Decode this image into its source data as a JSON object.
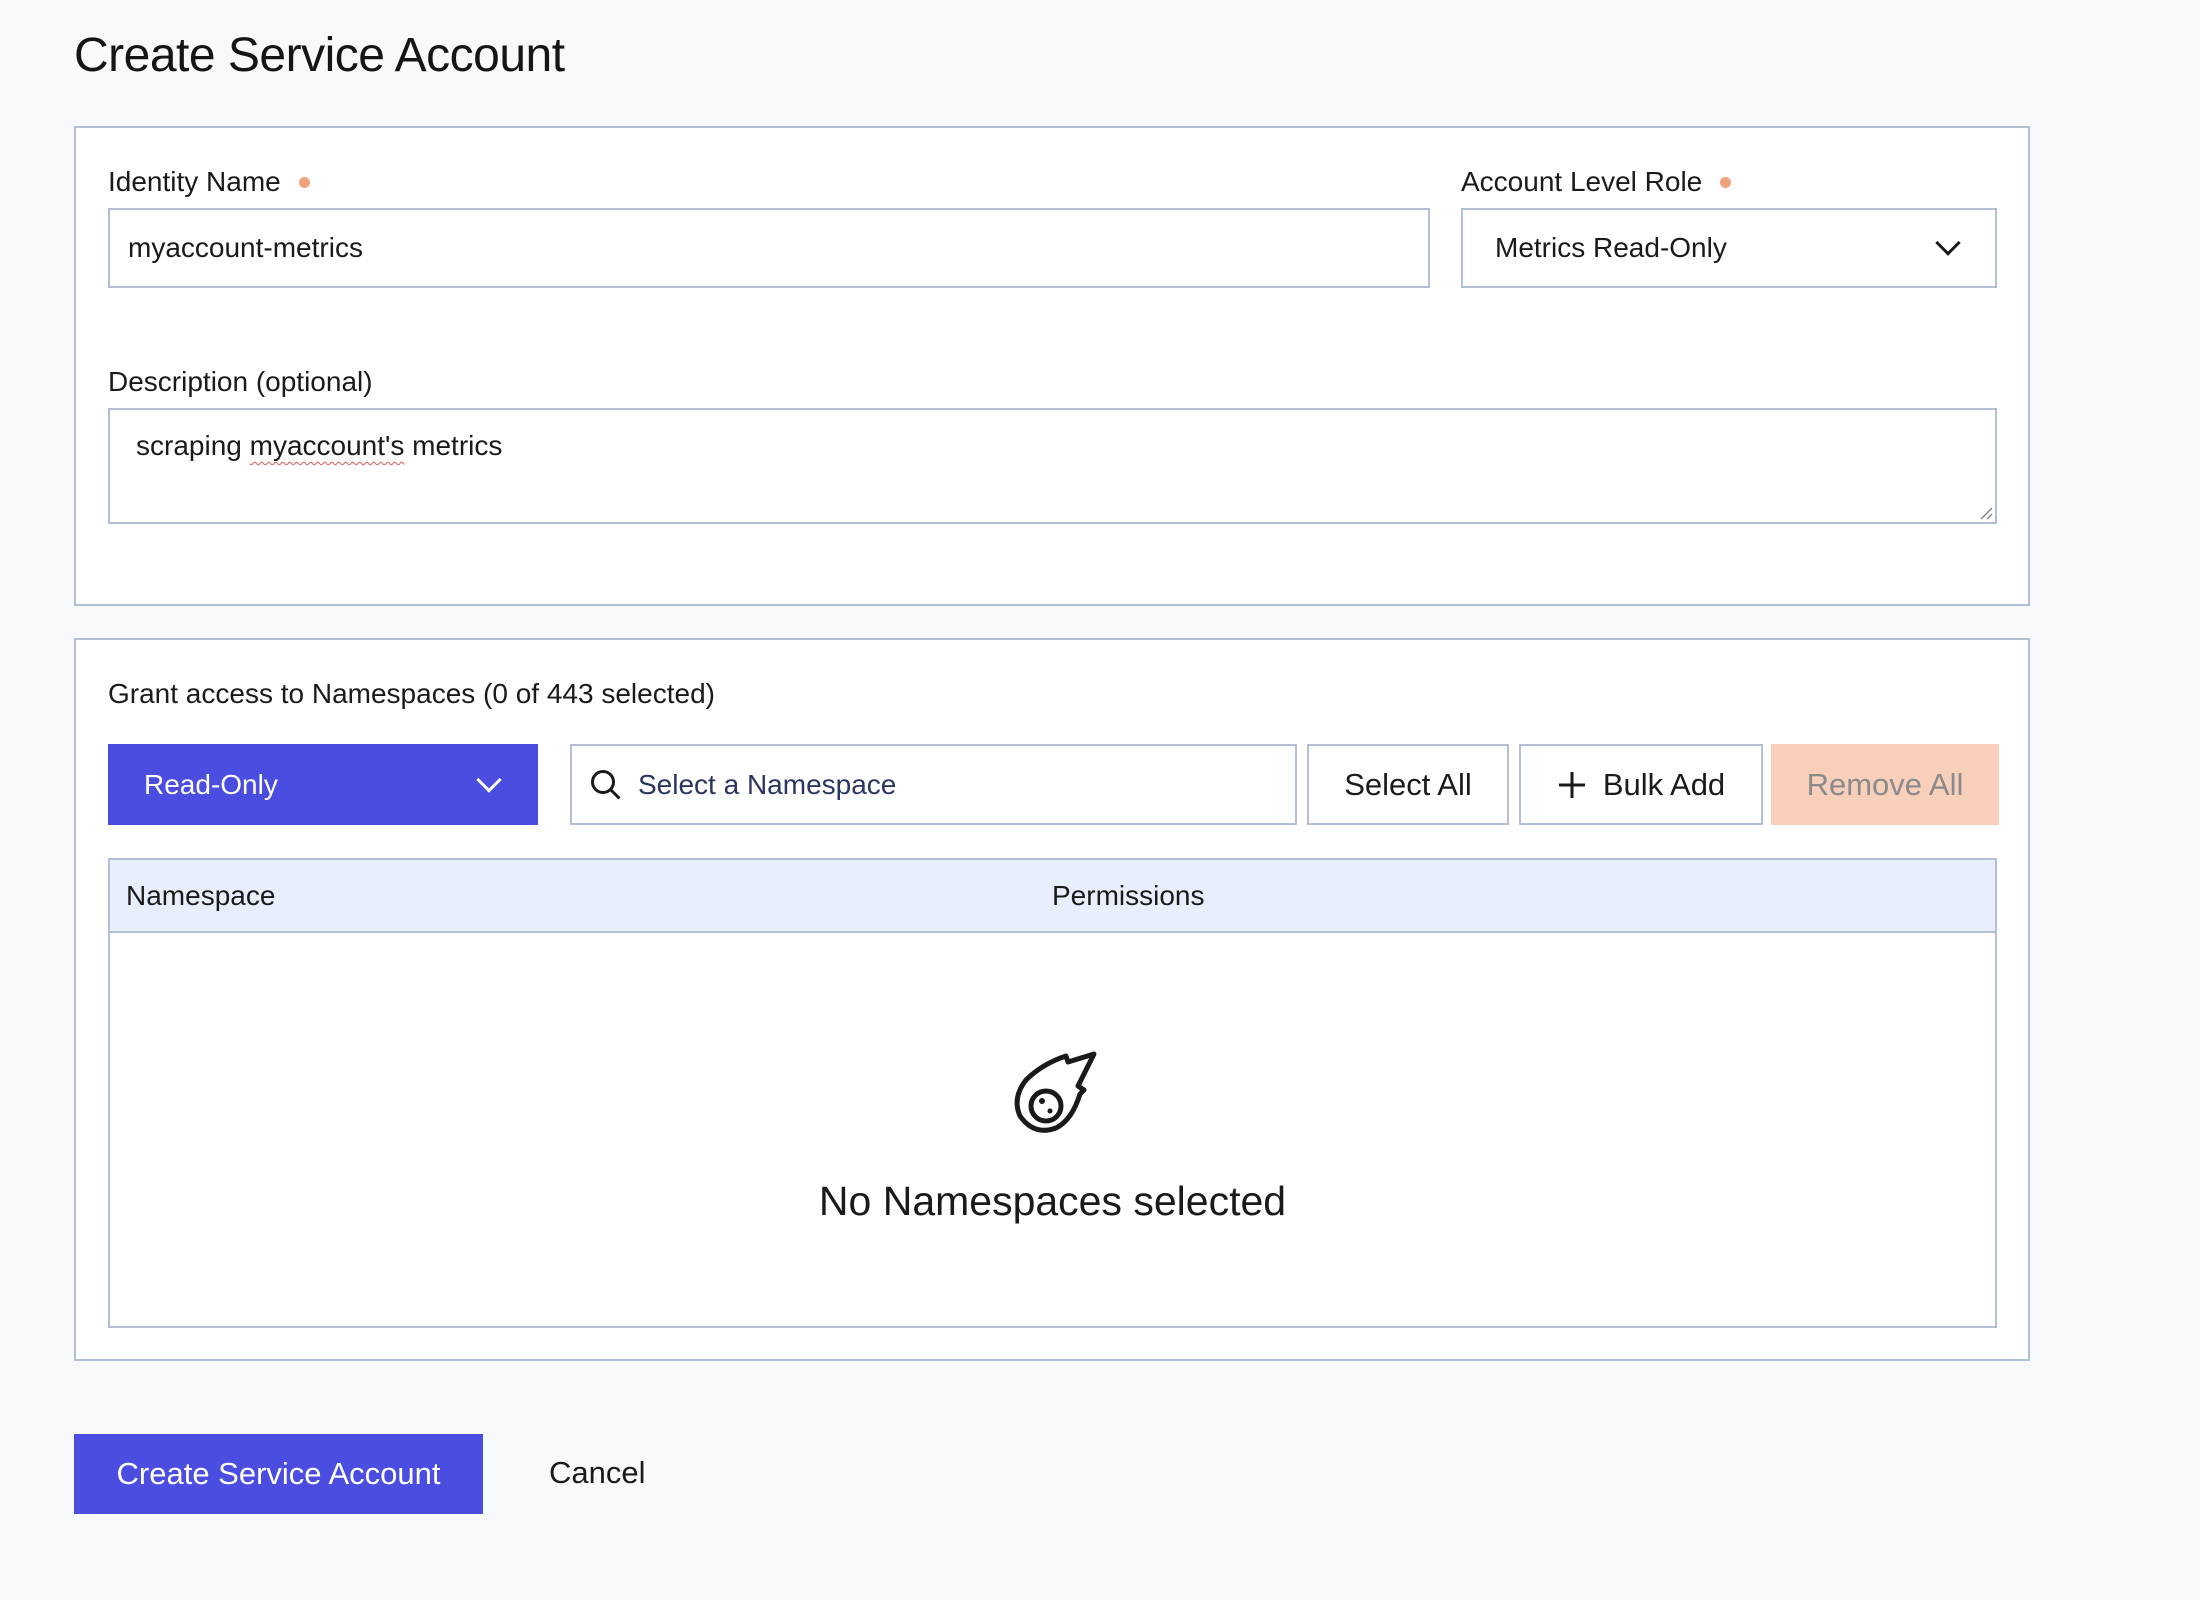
{
  "page": {
    "title": "Create Service Account"
  },
  "identity": {
    "label": "Identity Name",
    "value": "myaccount-metrics",
    "required": true
  },
  "role": {
    "label": "Account Level Role",
    "value": "Metrics Read-Only",
    "required": true
  },
  "description": {
    "label": "Description (optional)",
    "value_before": "scraping ",
    "value_misspelled": "myaccount's",
    "value_after": " metrics"
  },
  "namespaces": {
    "heading": "Grant access to Namespaces (0 of 443 selected)",
    "permission_select": "Read-Only",
    "search_placeholder": "Select a Namespace",
    "select_all": "Select All",
    "bulk_add": "Bulk Add",
    "remove_all": "Remove All",
    "columns": [
      "Namespace",
      "Permissions"
    ],
    "empty_text": "No Namespaces selected"
  },
  "actions": {
    "create": "Create Service Account",
    "cancel": "Cancel"
  },
  "colors": {
    "primary": "#4a4de0",
    "required_dot": "#f0a27c",
    "border": "#b3bfd9",
    "table_header": "#e8eefc",
    "remove_all_bg": "#f7cfbb"
  }
}
